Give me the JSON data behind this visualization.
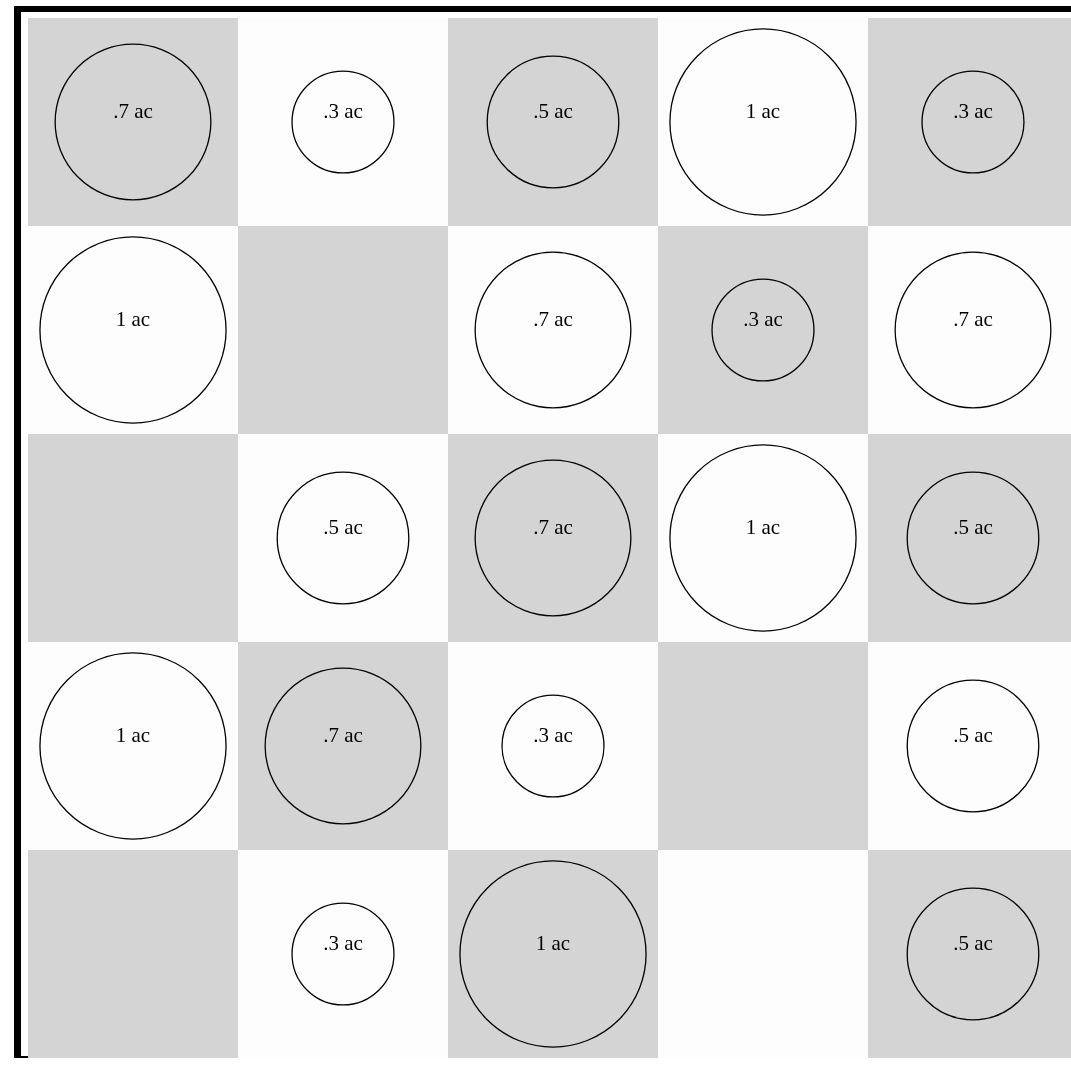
{
  "chart_data": {
    "type": "heatmap",
    "categories": [
      null,
      null,
      null,
      null,
      null
    ],
    "y_categories": [
      null,
      null,
      null,
      null,
      null
    ],
    "cells": [
      [
        0.7,
        0.3,
        0.5,
        1,
        0.3
      ],
      [
        1,
        null,
        0.7,
        0.3,
        0.7
      ],
      [
        null,
        0.5,
        0.7,
        1,
        0.5
      ],
      [
        1,
        0.7,
        0.3,
        null,
        0.5
      ],
      [
        null,
        0.3,
        1,
        null,
        0.5
      ]
    ],
    "cell_labels": [
      [
        ".7 ac",
        ".3 ac",
        ".5 ac",
        "1 ac",
        ".3 ac"
      ],
      [
        "1 ac",
        null,
        ".7 ac",
        ".3 ac",
        ".7 ac"
      ],
      [
        null,
        ".5 ac",
        ".7 ac",
        "1 ac",
        ".5 ac"
      ],
      [
        "1 ac",
        ".7 ac",
        ".3 ac",
        null,
        ".5 ac"
      ],
      [
        null,
        ".3 ac",
        "1 ac",
        null,
        ".5 ac"
      ]
    ],
    "tick_labels": false
  }
}
